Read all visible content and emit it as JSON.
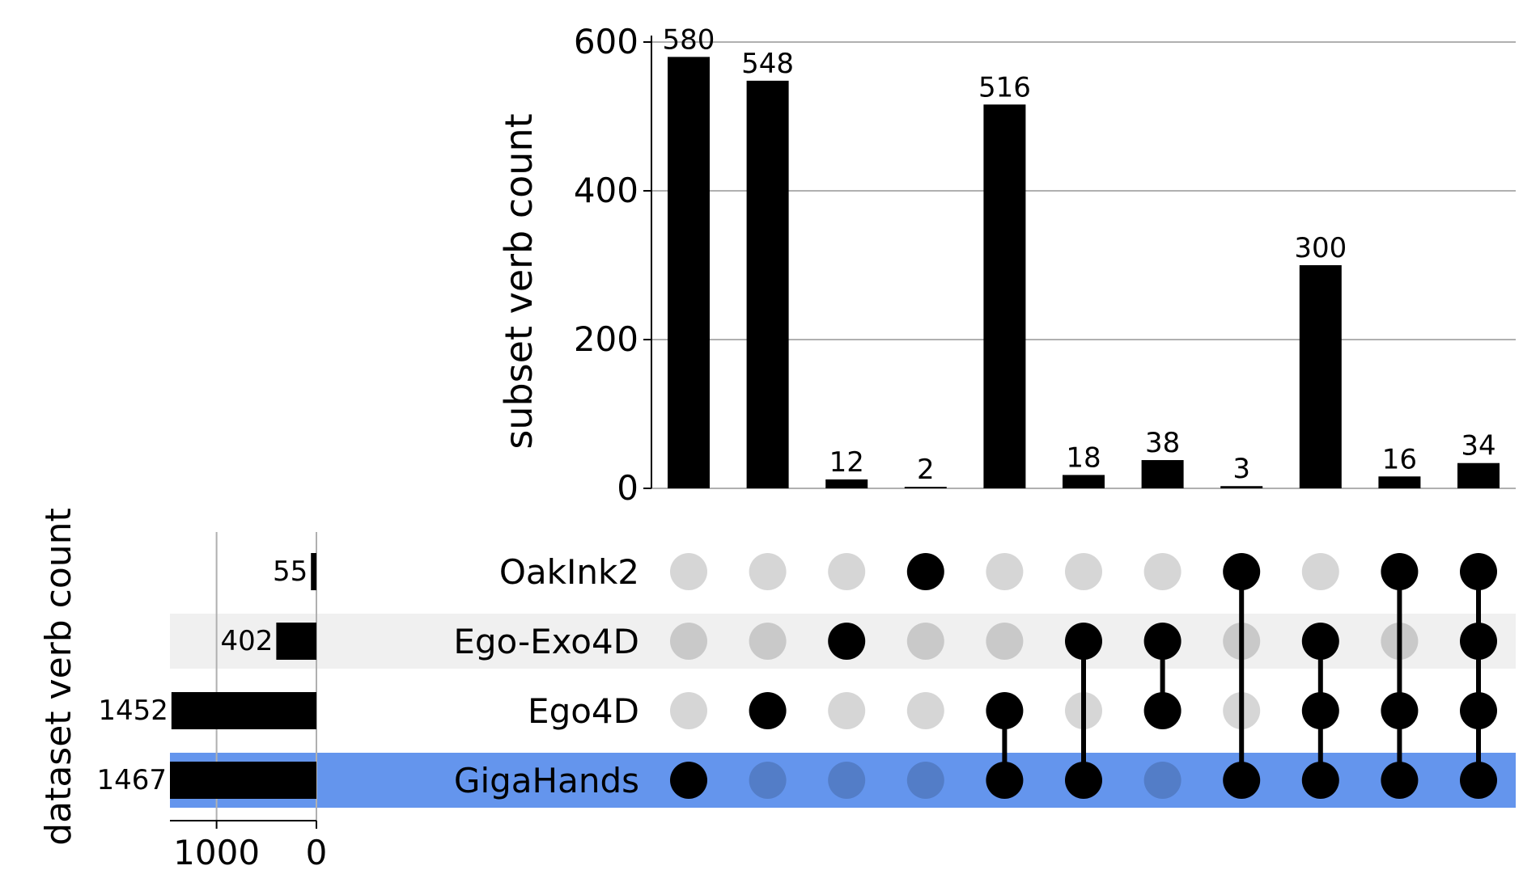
{
  "chart_data": {
    "type": "upset",
    "sets": [
      "OakInk2",
      "Ego-Exo4D",
      "Ego4D",
      "GigaHands"
    ],
    "set_sizes": [
      55,
      402,
      1452,
      1467
    ],
    "highlighted_set": "GigaHands",
    "highlight_color": "#6495ed",
    "stripe_color": "#f0f0f0",
    "intersections": [
      {
        "members": [
          "GigaHands"
        ],
        "value": 580
      },
      {
        "members": [
          "Ego4D"
        ],
        "value": 548
      },
      {
        "members": [
          "Ego-Exo4D"
        ],
        "value": 12
      },
      {
        "members": [
          "OakInk2"
        ],
        "value": 2
      },
      {
        "members": [
          "Ego4D",
          "GigaHands"
        ],
        "value": 516
      },
      {
        "members": [
          "Ego-Exo4D",
          "GigaHands"
        ],
        "value": 18
      },
      {
        "members": [
          "Ego-Exo4D",
          "Ego4D"
        ],
        "value": 38
      },
      {
        "members": [
          "OakInk2",
          "GigaHands"
        ],
        "value": 3
      },
      {
        "members": [
          "Ego-Exo4D",
          "Ego4D",
          "GigaHands"
        ],
        "value": 300
      },
      {
        "members": [
          "OakInk2",
          "Ego4D",
          "GigaHands"
        ],
        "value": 16
      },
      {
        "members": [
          "OakInk2",
          "Ego-Exo4D",
          "Ego4D",
          "GigaHands"
        ],
        "value": 34
      }
    ],
    "bar_ylabel": "subset verb count",
    "bar_ylim": [
      0,
      600
    ],
    "bar_yticks": [
      0,
      200,
      400,
      600
    ],
    "size_xlabel": "dataset verb count",
    "size_xticks": [
      1000,
      0
    ],
    "grid": true
  }
}
